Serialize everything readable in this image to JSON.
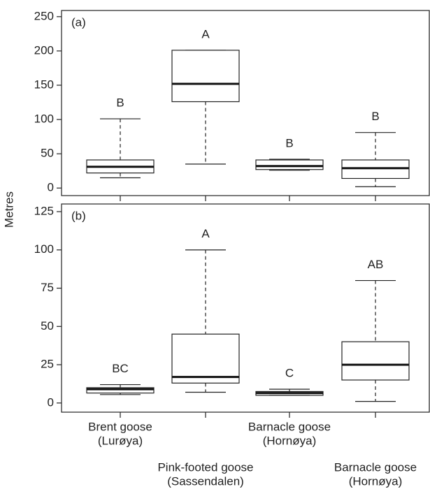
{
  "chart_data": [
    {
      "type": "box",
      "panel_label": "(a)",
      "ylabel": "Metres",
      "ylim": [
        -11,
        259
      ],
      "yticks": [
        0,
        50,
        100,
        150,
        200,
        250
      ],
      "boxes": [
        {
          "min": 15,
          "q1": 22,
          "median": 31,
          "q3": 41,
          "max": 101,
          "label": "B"
        },
        {
          "min": 35,
          "q1": 126,
          "median": 152,
          "q3": 201,
          "max": 201,
          "label": "A"
        },
        {
          "min": 26,
          "q1": 27,
          "median": 32,
          "q3": 41,
          "max": 42,
          "label": "B"
        },
        {
          "min": 2,
          "q1": 14,
          "median": 29,
          "q3": 41,
          "max": 81,
          "label": "B"
        }
      ]
    },
    {
      "type": "box",
      "panel_label": "(b)",
      "ylim": [
        -6,
        130
      ],
      "yticks": [
        0,
        25,
        50,
        75,
        100,
        125
      ],
      "categories": [
        [
          "Brent goose",
          "(Lurøya)"
        ],
        [
          "Pink-footed goose",
          "(Sassendalen)"
        ],
        [
          "Barnacle goose",
          "(Hornøya)"
        ],
        [
          "Barnacle goose",
          "(Hornøya)"
        ]
      ],
      "boxes": [
        {
          "min": 5.5,
          "q1": 6.5,
          "median": 9,
          "q3": 10,
          "max": 12,
          "label": "BC"
        },
        {
          "min": 7,
          "q1": 13,
          "median": 17,
          "q3": 45,
          "max": 100,
          "label": "A"
        },
        {
          "min": 5,
          "q1": 5,
          "median": 6.5,
          "q3": 7.5,
          "max": 9,
          "label": "C"
        },
        {
          "min": 1,
          "q1": 15,
          "median": 25,
          "q3": 40,
          "max": 80,
          "label": "AB"
        }
      ]
    }
  ]
}
